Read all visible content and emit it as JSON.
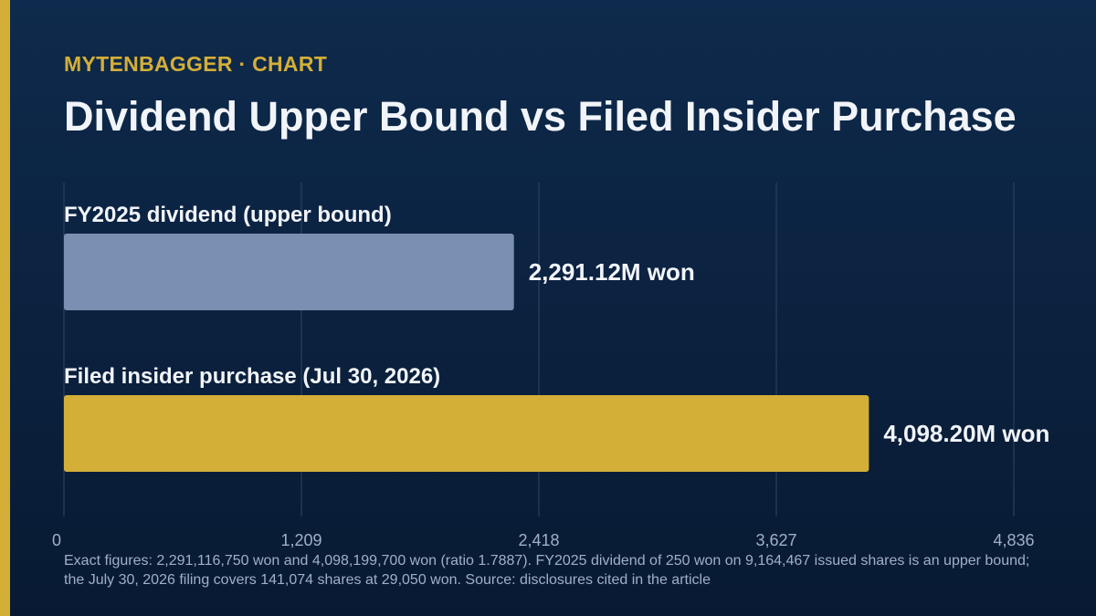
{
  "kicker": "MYTENBAGGER · CHART",
  "title": "Dividend Upper Bound vs Filed Insider Purchase",
  "footnote": "Exact figures: 2,291,116,750 won and 4,098,199,700 won (ratio 1.7887). FY2025 dividend of 250 won on 9,164,467 issued shares is an upper bound; the July 30, 2026 filing covers 141,074 shares at 29,050 won. Source: disclosures cited in the article",
  "colors": {
    "accent": "#d4af37",
    "dividend_bar": "#7a90b3",
    "purchase_bar": "#d4af37"
  },
  "chart_data": {
    "type": "bar",
    "orientation": "horizontal",
    "title": "Dividend Upper Bound vs Filed Insider Purchase",
    "categories": [
      "FY2025 dividend (upper bound)",
      "Filed insider purchase (Jul 30, 2026)"
    ],
    "values": [
      2291.12,
      4098.2
    ],
    "data_labels": [
      "2,291.12M won",
      "4,098.20M won"
    ],
    "x_ticks": [
      0,
      1209,
      2418,
      3627,
      4836
    ],
    "x_tick_labels": [
      "0",
      "1,209",
      "2,418",
      "3,627",
      "4,836"
    ],
    "xlim": [
      0,
      4836
    ],
    "grid": "vertical",
    "legend": "none"
  }
}
